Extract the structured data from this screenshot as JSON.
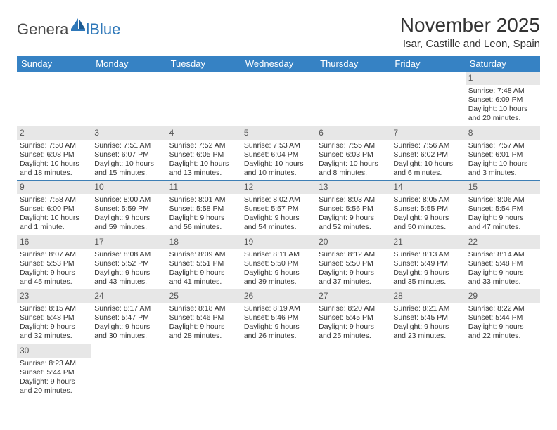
{
  "logo": {
    "text1": "Genera",
    "text2": "lBlue"
  },
  "title": "November 2025",
  "location": "Isar, Castille and Leon, Spain",
  "colors": {
    "header_bg": "#3682c4",
    "header_text": "#ffffff",
    "daynum_bg": "#e7e7e7",
    "row_border": "#3d7fb5",
    "logo_gray": "#4a4a4a",
    "logo_blue": "#2f78b9"
  },
  "dayNames": [
    "Sunday",
    "Monday",
    "Tuesday",
    "Wednesday",
    "Thursday",
    "Friday",
    "Saturday"
  ],
  "weeks": [
    [
      null,
      null,
      null,
      null,
      null,
      null,
      {
        "n": "1",
        "sr": "7:48 AM",
        "ss": "6:09 PM",
        "dl": "10 hours and 20 minutes."
      }
    ],
    [
      {
        "n": "2",
        "sr": "7:50 AM",
        "ss": "6:08 PM",
        "dl": "10 hours and 18 minutes."
      },
      {
        "n": "3",
        "sr": "7:51 AM",
        "ss": "6:07 PM",
        "dl": "10 hours and 15 minutes."
      },
      {
        "n": "4",
        "sr": "7:52 AM",
        "ss": "6:05 PM",
        "dl": "10 hours and 13 minutes."
      },
      {
        "n": "5",
        "sr": "7:53 AM",
        "ss": "6:04 PM",
        "dl": "10 hours and 10 minutes."
      },
      {
        "n": "6",
        "sr": "7:55 AM",
        "ss": "6:03 PM",
        "dl": "10 hours and 8 minutes."
      },
      {
        "n": "7",
        "sr": "7:56 AM",
        "ss": "6:02 PM",
        "dl": "10 hours and 6 minutes."
      },
      {
        "n": "8",
        "sr": "7:57 AM",
        "ss": "6:01 PM",
        "dl": "10 hours and 3 minutes."
      }
    ],
    [
      {
        "n": "9",
        "sr": "7:58 AM",
        "ss": "6:00 PM",
        "dl": "10 hours and 1 minute."
      },
      {
        "n": "10",
        "sr": "8:00 AM",
        "ss": "5:59 PM",
        "dl": "9 hours and 59 minutes."
      },
      {
        "n": "11",
        "sr": "8:01 AM",
        "ss": "5:58 PM",
        "dl": "9 hours and 56 minutes."
      },
      {
        "n": "12",
        "sr": "8:02 AM",
        "ss": "5:57 PM",
        "dl": "9 hours and 54 minutes."
      },
      {
        "n": "13",
        "sr": "8:03 AM",
        "ss": "5:56 PM",
        "dl": "9 hours and 52 minutes."
      },
      {
        "n": "14",
        "sr": "8:05 AM",
        "ss": "5:55 PM",
        "dl": "9 hours and 50 minutes."
      },
      {
        "n": "15",
        "sr": "8:06 AM",
        "ss": "5:54 PM",
        "dl": "9 hours and 47 minutes."
      }
    ],
    [
      {
        "n": "16",
        "sr": "8:07 AM",
        "ss": "5:53 PM",
        "dl": "9 hours and 45 minutes."
      },
      {
        "n": "17",
        "sr": "8:08 AM",
        "ss": "5:52 PM",
        "dl": "9 hours and 43 minutes."
      },
      {
        "n": "18",
        "sr": "8:09 AM",
        "ss": "5:51 PM",
        "dl": "9 hours and 41 minutes."
      },
      {
        "n": "19",
        "sr": "8:11 AM",
        "ss": "5:50 PM",
        "dl": "9 hours and 39 minutes."
      },
      {
        "n": "20",
        "sr": "8:12 AM",
        "ss": "5:50 PM",
        "dl": "9 hours and 37 minutes."
      },
      {
        "n": "21",
        "sr": "8:13 AM",
        "ss": "5:49 PM",
        "dl": "9 hours and 35 minutes."
      },
      {
        "n": "22",
        "sr": "8:14 AM",
        "ss": "5:48 PM",
        "dl": "9 hours and 33 minutes."
      }
    ],
    [
      {
        "n": "23",
        "sr": "8:15 AM",
        "ss": "5:48 PM",
        "dl": "9 hours and 32 minutes."
      },
      {
        "n": "24",
        "sr": "8:17 AM",
        "ss": "5:47 PM",
        "dl": "9 hours and 30 minutes."
      },
      {
        "n": "25",
        "sr": "8:18 AM",
        "ss": "5:46 PM",
        "dl": "9 hours and 28 minutes."
      },
      {
        "n": "26",
        "sr": "8:19 AM",
        "ss": "5:46 PM",
        "dl": "9 hours and 26 minutes."
      },
      {
        "n": "27",
        "sr": "8:20 AM",
        "ss": "5:45 PM",
        "dl": "9 hours and 25 minutes."
      },
      {
        "n": "28",
        "sr": "8:21 AM",
        "ss": "5:45 PM",
        "dl": "9 hours and 23 minutes."
      },
      {
        "n": "29",
        "sr": "8:22 AM",
        "ss": "5:44 PM",
        "dl": "9 hours and 22 minutes."
      }
    ],
    [
      {
        "n": "30",
        "sr": "8:23 AM",
        "ss": "5:44 PM",
        "dl": "9 hours and 20 minutes."
      },
      null,
      null,
      null,
      null,
      null,
      null
    ]
  ],
  "labels": {
    "sunrise": "Sunrise:",
    "sunset": "Sunset:",
    "daylight": "Daylight:"
  }
}
